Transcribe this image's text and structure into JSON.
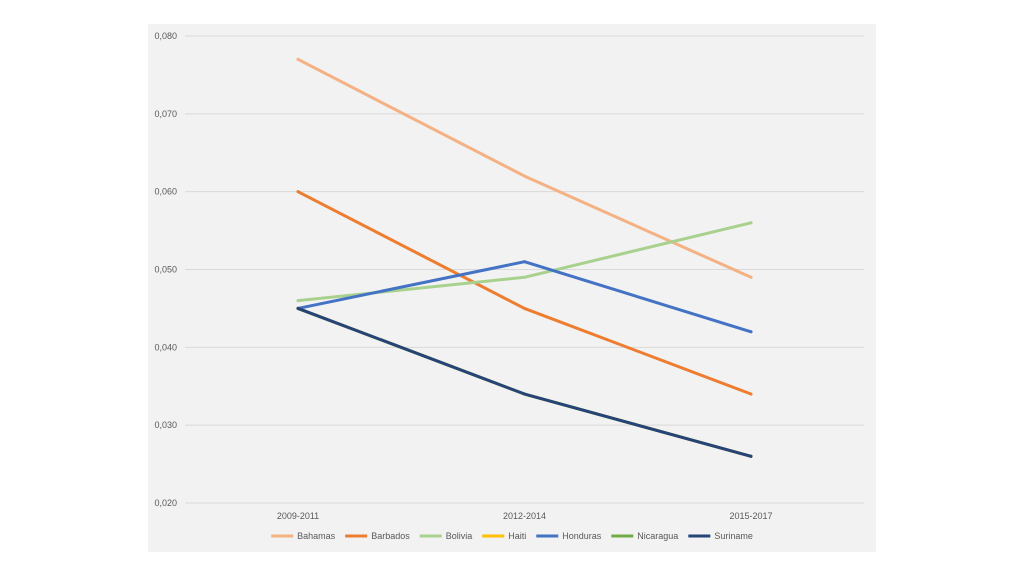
{
  "chart_data": {
    "type": "line",
    "title": "",
    "xlabel": "",
    "ylabel": "",
    "categories": [
      "2009-2011",
      "2012-2014",
      "2015-2017"
    ],
    "ylim": [
      0.02,
      0.08
    ],
    "y_ticks": [
      0.02,
      0.03,
      0.04,
      0.05,
      0.06,
      0.07,
      0.08
    ],
    "y_tick_labels": [
      "0,020",
      "0,030",
      "0,040",
      "0,050",
      "0,060",
      "0,070",
      "0,080"
    ],
    "grid": true,
    "legend_position": "bottom",
    "series": [
      {
        "name": "Bahamas",
        "color": "#f4b183",
        "values": [
          0.077,
          0.062,
          0.049
        ]
      },
      {
        "name": "Barbados",
        "color": "#ed7d31",
        "values": [
          0.06,
          0.045,
          0.034
        ]
      },
      {
        "name": "Bolivia",
        "color": "#a9d18e",
        "values": [
          0.046,
          0.049,
          0.056
        ]
      },
      {
        "name": "Haiti",
        "color": "#ffc000",
        "values": [
          0.045,
          0.034,
          0.026
        ]
      },
      {
        "name": "Honduras",
        "color": "#4472c4",
        "values": [
          0.045,
          0.051,
          0.042
        ]
      },
      {
        "name": "Nicaragua",
        "color": "#70ad47",
        "values": [
          0.045,
          0.034,
          0.026
        ]
      },
      {
        "name": "Suriname",
        "color": "#264478",
        "values": [
          0.045,
          0.034,
          0.026
        ]
      }
    ]
  }
}
